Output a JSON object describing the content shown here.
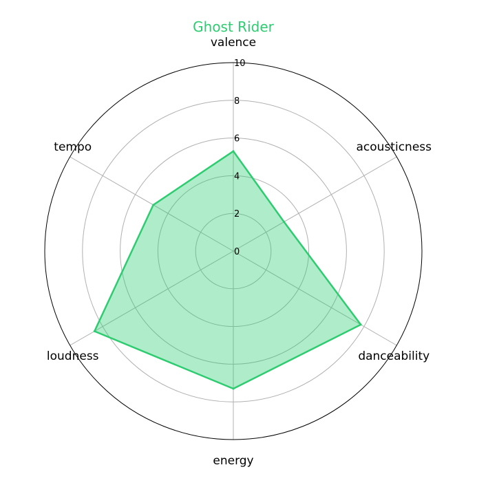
{
  "chart_data": {
    "type": "radar",
    "title": "Ghost Rider",
    "axes": [
      "valence",
      "acousticness",
      "danceability",
      "energy",
      "loudness",
      "tempo"
    ],
    "series": [
      {
        "values": [
          5.3,
          3.1,
          7.8,
          7.3,
          8.5,
          4.9
        ]
      }
    ],
    "rlim": [
      0,
      10
    ],
    "r_ticks": [
      "0",
      "2",
      "4",
      "6",
      "8",
      "10"
    ],
    "r_tick_values": [
      0,
      2,
      4,
      6,
      8,
      10
    ],
    "grid": true,
    "colors": {
      "series_line": "#2ecc71",
      "series_fill": "#2ecc71",
      "title": "#2ecc71",
      "grid": "#b0b0b0",
      "outer_ring": "#000000"
    }
  }
}
